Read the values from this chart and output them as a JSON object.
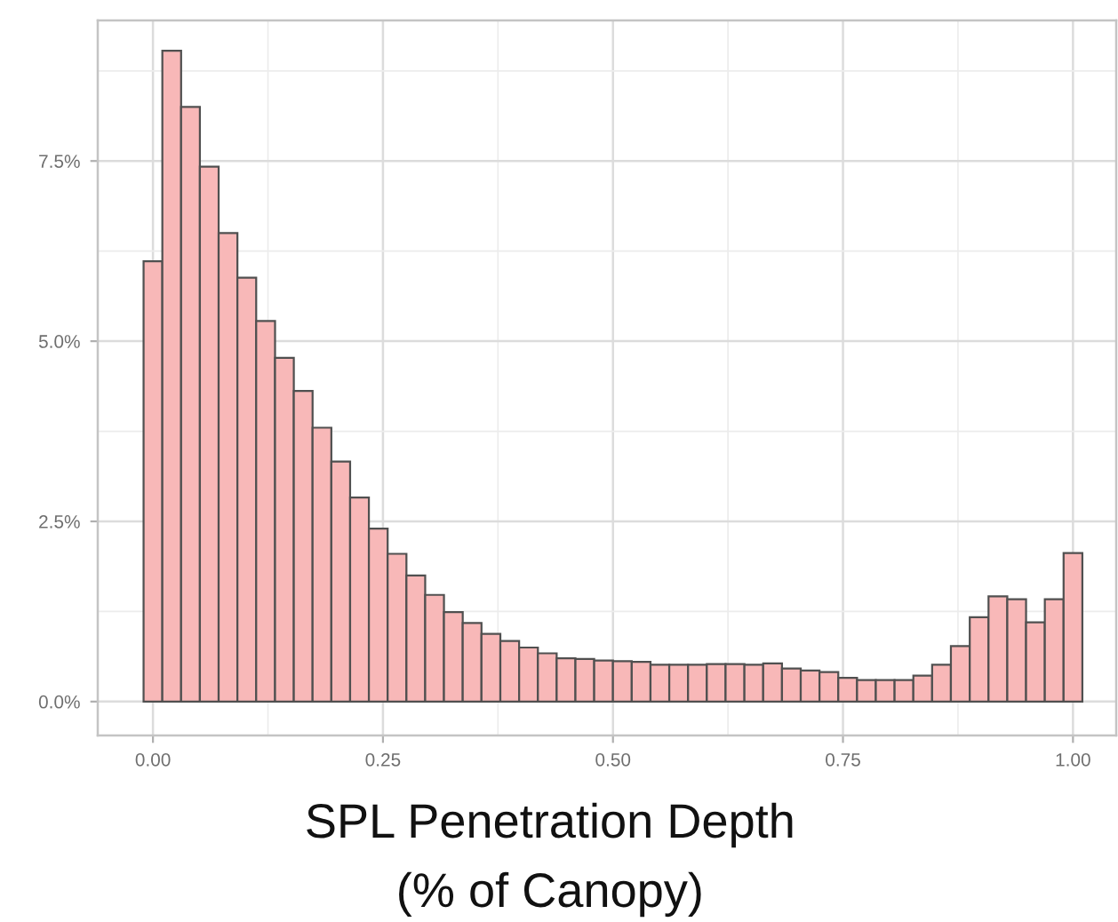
{
  "chart_data": {
    "type": "histogram",
    "xlabel": "SPL Penetration Depth\n(% of Canopy)",
    "bins": [
      -0.0102,
      0.0102,
      0.0306,
      0.051,
      0.0714,
      0.0918,
      0.1122,
      0.1327,
      0.1531,
      0.1735,
      0.1939,
      0.2143,
      0.2347,
      0.2551,
      0.2755,
      0.2959,
      0.3163,
      0.3367,
      0.3571,
      0.3776,
      0.398,
      0.4184,
      0.4388,
      0.4592,
      0.4796,
      0.5,
      0.5204,
      0.5408,
      0.5612,
      0.5816,
      0.602,
      0.6224,
      0.6429,
      0.6633,
      0.6837,
      0.7041,
      0.7245,
      0.7449,
      0.7653,
      0.7857,
      0.8061,
      0.8265,
      0.8469,
      0.8673,
      0.8878,
      0.9082,
      0.9286,
      0.949,
      0.9694,
      0.9898,
      1.0102
    ],
    "values": [
      6.11,
      9.03,
      8.25,
      7.42,
      6.5,
      5.88,
      5.28,
      4.77,
      4.31,
      3.8,
      3.33,
      2.83,
      2.4,
      2.05,
      1.75,
      1.48,
      1.24,
      1.09,
      0.94,
      0.84,
      0.75,
      0.67,
      0.6,
      0.59,
      0.57,
      0.56,
      0.55,
      0.51,
      0.51,
      0.51,
      0.52,
      0.52,
      0.51,
      0.53,
      0.46,
      0.43,
      0.41,
      0.33,
      0.3,
      0.3,
      0.3,
      0.36,
      0.51,
      0.77,
      1.17,
      1.46,
      1.42,
      1.1,
      1.42,
      2.06
    ],
    "color": "#f8b8b8",
    "xlim": [
      -0.06,
      1.047
    ],
    "xticks": [
      {
        "value": 0,
        "label": "0.00"
      },
      0.25,
      {
        "value": 0.5,
        "label": "0.50"
      },
      0.75,
      {
        "value": 1,
        "label": "1.00"
      }
    ],
    "ylim": [
      -0.47,
      9.45
    ],
    "yticks": [
      {
        "value": 0,
        "label": "0.0%"
      },
      {
        "value": 2.5,
        "label": "2.5%"
      },
      {
        "value": 5,
        "label": "5.0%"
      },
      {
        "value": 7.5,
        "label": "7.5%"
      }
    ],
    "grid": true
  }
}
